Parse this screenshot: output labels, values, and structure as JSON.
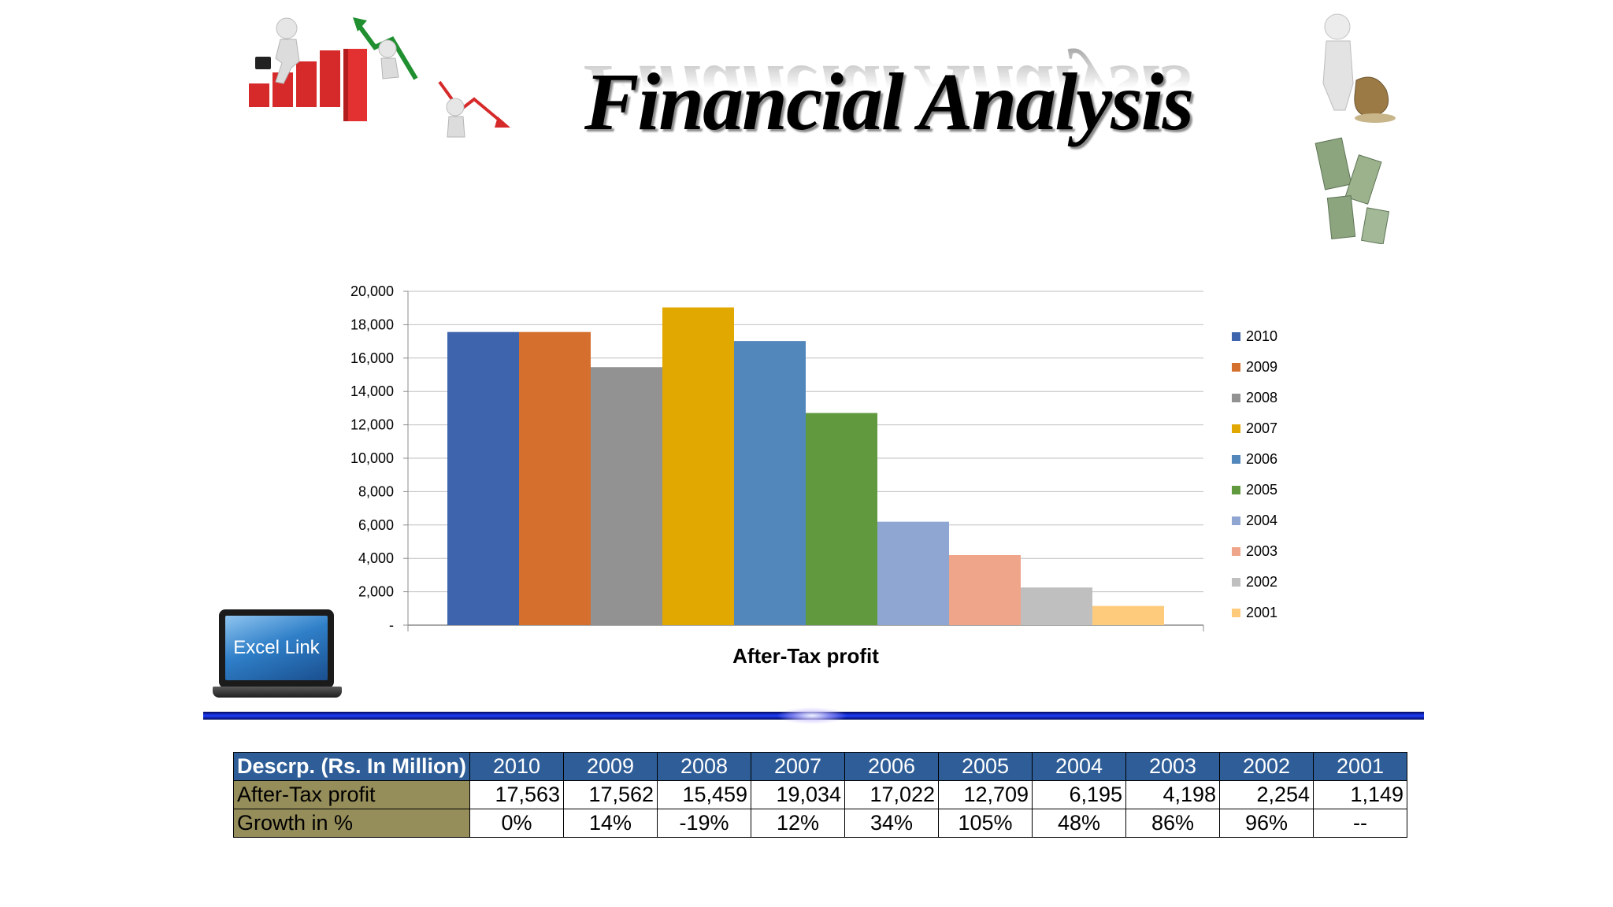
{
  "slide": {
    "title": "Financial Analysis",
    "excel_link_label": "Excel Link"
  },
  "chart_data": {
    "type": "bar",
    "title": "",
    "xlabel": "After-Tax profit",
    "ylabel": "",
    "ylim": [
      0,
      20000
    ],
    "yticks": [
      0,
      2000,
      4000,
      6000,
      8000,
      10000,
      12000,
      14000,
      16000,
      18000,
      20000
    ],
    "ytick_labels": [
      "-",
      "2,000",
      "4,000",
      "6,000",
      "8,000",
      "10,000",
      "12,000",
      "14,000",
      "16,000",
      "18,000",
      "20,000"
    ],
    "grid": true,
    "legend_position": "right",
    "series": [
      {
        "name": "2010",
        "value": 17563,
        "color": "#3d64ac"
      },
      {
        "name": "2009",
        "value": 17562,
        "color": "#d56f2e"
      },
      {
        "name": "2008",
        "value": 15459,
        "color": "#929292"
      },
      {
        "name": "2007",
        "value": 19034,
        "color": "#e0a800"
      },
      {
        "name": "2006",
        "value": 17022,
        "color": "#5287bc"
      },
      {
        "name": "2005",
        "value": 12709,
        "color": "#619a3e"
      },
      {
        "name": "2004",
        "value": 6195,
        "color": "#8fa5d2"
      },
      {
        "name": "2003",
        "value": 4198,
        "color": "#efa58a"
      },
      {
        "name": "2002",
        "value": 2254,
        "color": "#bfbfbf"
      },
      {
        "name": "2001",
        "value": 1149,
        "color": "#fecb7d"
      }
    ]
  },
  "table": {
    "header_label": "Descrp. (Rs. In Million)",
    "years": [
      "2010",
      "2009",
      "2008",
      "2007",
      "2006",
      "2005",
      "2004",
      "2003",
      "2002",
      "2001"
    ],
    "rows": [
      {
        "label": "After-Tax profit",
        "values": [
          "17,563",
          "17,562",
          "15,459",
          "19,034",
          "17,022",
          "12,709",
          "6,195",
          "4,198",
          "2,254",
          "1,149"
        ]
      },
      {
        "label": "Growth in %",
        "values": [
          "0%",
          "14%",
          "-19%",
          "12%",
          "34%",
          "105%",
          "48%",
          "86%",
          "96%",
          "--"
        ]
      }
    ]
  },
  "colors": {
    "table_header_bg": "#2e5d97",
    "table_label_bg": "#958d5a",
    "divider_blue": "#1f3dff"
  }
}
